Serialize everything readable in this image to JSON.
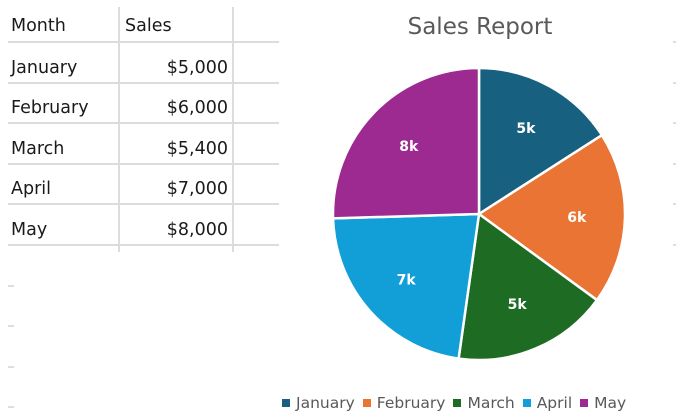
{
  "table": {
    "headers": [
      "Month",
      "Sales"
    ],
    "rows": [
      {
        "month": "January",
        "sales": "$5,000"
      },
      {
        "month": "February",
        "sales": "$6,000"
      },
      {
        "month": "March",
        "sales": "$5,400"
      },
      {
        "month": "April",
        "sales": "$7,000"
      },
      {
        "month": "May",
        "sales": "$8,000"
      }
    ]
  },
  "chart_data": {
    "type": "pie",
    "title": "Sales Report",
    "categories": [
      "January",
      "February",
      "March",
      "April",
      "May"
    ],
    "values": [
      5000,
      6000,
      5400,
      7000,
      8000
    ],
    "data_labels": [
      "5k",
      "6k",
      "5k",
      "7k",
      "8k"
    ],
    "colors": [
      "#17607f",
      "#ea7434",
      "#1e6b24",
      "#129fd8",
      "#9d2a91"
    ],
    "start_angle_deg": 0,
    "direction": "clockwise",
    "legend_position": "bottom"
  }
}
